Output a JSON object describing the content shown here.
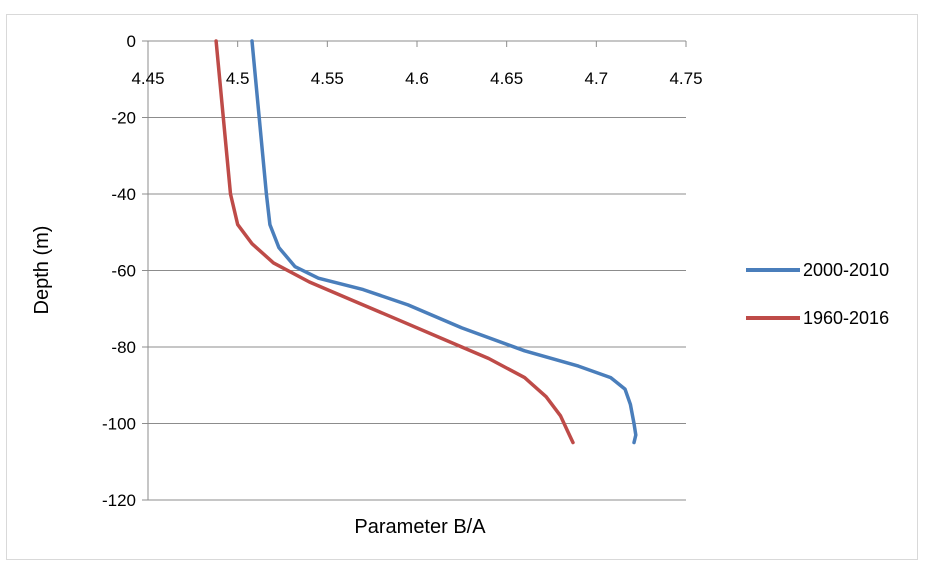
{
  "chart_data": {
    "type": "line",
    "title": "",
    "xlabel": "Parameter B/A",
    "ylabel": "Depth (m)",
    "xlim": [
      4.45,
      4.75
    ],
    "ylim": [
      -120,
      0
    ],
    "x_ticks": [
      "4.45",
      "4.5",
      "4.55",
      "4.6",
      "4.65",
      "4.7",
      "4.75"
    ],
    "y_ticks": [
      "0",
      "-20",
      "-40",
      "-60",
      "-80",
      "-100",
      "-120"
    ],
    "x_axis_position": "top",
    "grid": "horizontal",
    "legend_position": "right",
    "series": [
      {
        "name": "2000-2010",
        "color": "#4a7ebb",
        "points": [
          [
            4.508,
            0
          ],
          [
            4.51,
            -10
          ],
          [
            4.512,
            -20
          ],
          [
            4.514,
            -30
          ],
          [
            4.516,
            -40
          ],
          [
            4.518,
            -48
          ],
          [
            4.523,
            -54
          ],
          [
            4.532,
            -59
          ],
          [
            4.545,
            -62
          ],
          [
            4.57,
            -65
          ],
          [
            4.595,
            -69
          ],
          [
            4.625,
            -75
          ],
          [
            4.66,
            -81
          ],
          [
            4.69,
            -85
          ],
          [
            4.708,
            -88
          ],
          [
            4.716,
            -91
          ],
          [
            4.719,
            -95
          ],
          [
            4.721,
            -100
          ],
          [
            4.722,
            -103
          ],
          [
            4.721,
            -105
          ]
        ]
      },
      {
        "name": "1960-2016",
        "color": "#be4b48",
        "points": [
          [
            4.488,
            0
          ],
          [
            4.49,
            -10
          ],
          [
            4.492,
            -20
          ],
          [
            4.494,
            -30
          ],
          [
            4.496,
            -40
          ],
          [
            4.5,
            -48
          ],
          [
            4.508,
            -53
          ],
          [
            4.52,
            -58
          ],
          [
            4.54,
            -63
          ],
          [
            4.565,
            -68
          ],
          [
            4.59,
            -73
          ],
          [
            4.615,
            -78
          ],
          [
            4.64,
            -83
          ],
          [
            4.66,
            -88
          ],
          [
            4.672,
            -93
          ],
          [
            4.68,
            -98
          ],
          [
            4.684,
            -102
          ],
          [
            4.687,
            -105
          ]
        ]
      }
    ]
  }
}
